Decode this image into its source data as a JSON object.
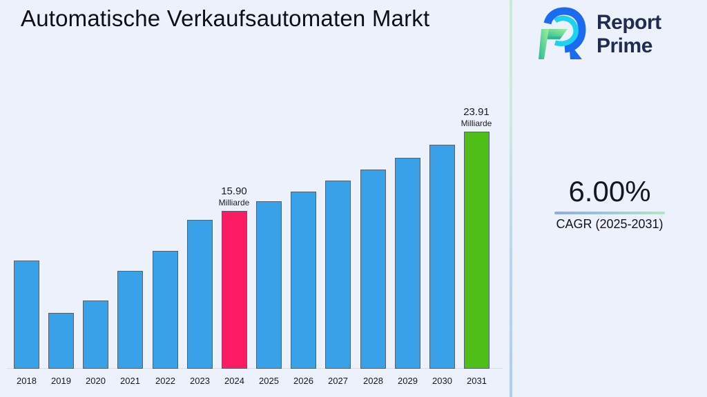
{
  "title": "Automatische Verkaufsautomaten Markt",
  "logo": {
    "brand_line1": "Report",
    "brand_line2": "Prime",
    "mark_colors": {
      "blue": "#1a6bf1",
      "cyan": "#1bd2f0",
      "green_light": "#9cf29b",
      "teal": "#2eb895"
    },
    "text_color": "#1f2b52"
  },
  "cagr_panel": {
    "value": "6.00%",
    "label": "CAGR (2025-2031)",
    "underline_gradient": [
      "#8fa7ee",
      "#b0e8bf"
    ]
  },
  "decor": {
    "background": "#ecf1fb",
    "divider_gradient_top": "#c8ecd3",
    "divider_gradient_bottom": "#b1cff4"
  },
  "chart_data": {
    "type": "bar",
    "title": "Automatische Verkaufsautomaten Markt",
    "unit": "Milliarde",
    "xlabel": "",
    "ylabel": "",
    "categories": [
      2018,
      2019,
      2020,
      2021,
      2022,
      2023,
      2024,
      2025,
      2026,
      2027,
      2028,
      2029,
      2030,
      2031
    ],
    "values": [
      10.9,
      5.65,
      6.9,
      9.85,
      11.9,
      15.0,
      15.9,
      16.85,
      17.86,
      18.93,
      20.07,
      21.27,
      22.55,
      23.91
    ],
    "ylim": [
      0,
      26
    ],
    "grid": false,
    "legend": false,
    "colors": {
      "default": "#38a1e8",
      "bar_border": "#55606e"
    },
    "highlight_colors": {
      "2024": "#fb1c63",
      "2031": "#4fbf17"
    },
    "labeled_points": [
      {
        "year": 2024,
        "value_label": "15.90",
        "unit_label": "Milliarde"
      },
      {
        "year": 2031,
        "value_label": "23.91",
        "unit_label": "Milliarde"
      }
    ]
  }
}
